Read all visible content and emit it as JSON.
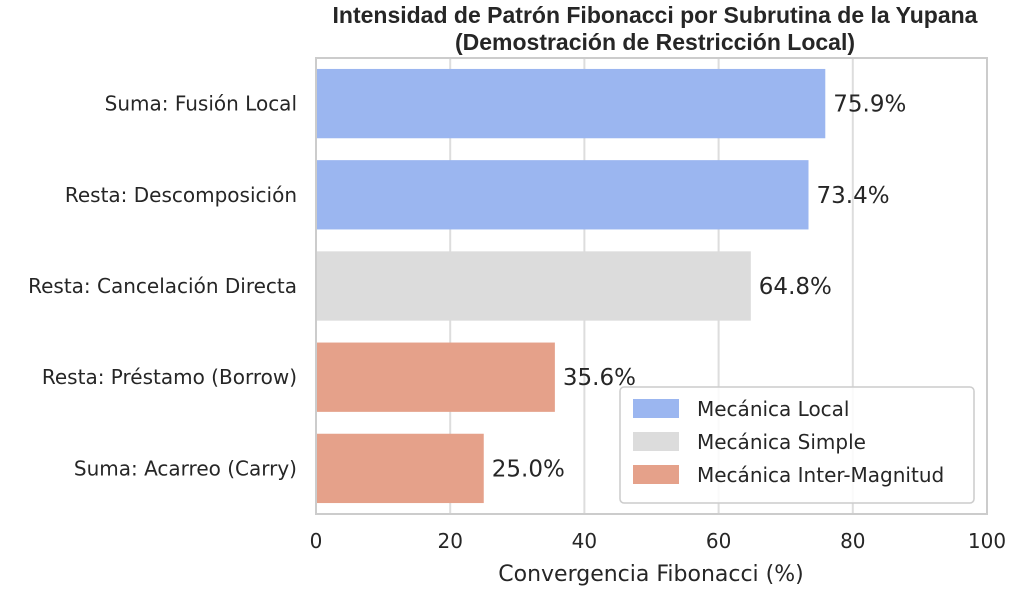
{
  "chart_data": {
    "type": "bar",
    "orientation": "horizontal",
    "title_line1": "Intensidad de Patrón Fibonacci por Subrutina de la Yupana",
    "title_line2": "(Demostración de Restricción Local)",
    "xlabel": "Convergencia Fibonacci (%)",
    "ylabel": "",
    "xlim": [
      0,
      100
    ],
    "xticks": [
      "0",
      "20",
      "40",
      "60",
      "80",
      "100"
    ],
    "grid": "vertical",
    "categories": [
      "Suma: Fusión Local",
      "Resta: Descomposición",
      "Resta: Cancelación Directa",
      "Resta: Préstamo (Borrow)",
      "Suma: Acarreo (Carry)"
    ],
    "values": [
      75.9,
      73.4,
      64.8,
      35.6,
      25.0
    ],
    "value_labels": [
      "75.9%",
      "73.4%",
      "64.8%",
      "35.6%",
      "25.0%"
    ],
    "bar_groups": [
      "local",
      "local",
      "simple",
      "inter",
      "inter"
    ],
    "group_colors": {
      "local": "#9bb6f0",
      "simple": "#dcdcdc",
      "inter": "#e5a18a"
    },
    "legend": {
      "position": "lower-right",
      "entries": [
        {
          "key": "local",
          "label": "Mecánica Local"
        },
        {
          "key": "simple",
          "label": "Mecánica Simple"
        },
        {
          "key": "inter",
          "label": "Mecánica Inter-Magnitud"
        }
      ]
    }
  }
}
